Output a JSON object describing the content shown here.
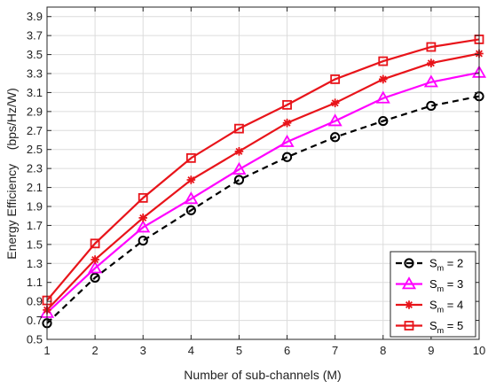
{
  "chart_data": {
    "type": "line",
    "xlabel": "Number of sub-channels (M)",
    "ylabel": "Energy Efficiency    (bps/Hz/W)",
    "xlim": [
      1,
      10
    ],
    "ylim": [
      0.5,
      4.0
    ],
    "x_ticks": [
      1,
      2,
      3,
      4,
      5,
      6,
      7,
      8,
      9,
      10
    ],
    "y_ticks": [
      0.5,
      0.7,
      0.9,
      1.1,
      1.3,
      1.5,
      1.7,
      1.9,
      2.1,
      2.3,
      2.5,
      2.7,
      2.9,
      3.1,
      3.3,
      3.5,
      3.7,
      3.9
    ],
    "y_tick_labels": [
      "0.5",
      "0.7",
      "0.9",
      "1.1",
      "1.3",
      "1.5",
      "1.7",
      "1.9",
      "2.1",
      "2.3",
      "2.5",
      "2.7",
      "2.9",
      "3.1",
      "3.3",
      "3.5",
      "3.7",
      "3.9"
    ],
    "grid": true,
    "legend_position": "bottom-right",
    "x": [
      1,
      2,
      3,
      4,
      5,
      6,
      7,
      8,
      9,
      10
    ],
    "series": [
      {
        "legend_base": "S",
        "legend_sub": "m",
        "legend_value": " = 2",
        "color": "#000000",
        "dash": true,
        "marker": "circle",
        "values": [
          0.67,
          1.15,
          1.54,
          1.86,
          2.18,
          2.42,
          2.63,
          2.8,
          2.96,
          3.06
        ]
      },
      {
        "legend_base": "S",
        "legend_sub": "m",
        "legend_value": " = 3",
        "color": "#ff00ff",
        "dash": false,
        "marker": "triangle",
        "values": [
          0.78,
          1.25,
          1.68,
          1.98,
          2.29,
          2.58,
          2.8,
          3.04,
          3.21,
          3.31
        ]
      },
      {
        "legend_base": "S",
        "legend_sub": "m",
        "legend_value": " = 4",
        "color": "#e8141a",
        "dash": false,
        "marker": "star",
        "values": [
          0.81,
          1.34,
          1.78,
          2.18,
          2.48,
          2.78,
          2.99,
          3.24,
          3.41,
          3.51
        ]
      },
      {
        "legend_base": "S",
        "legend_sub": "m",
        "legend_value": " = 5",
        "color": "#e8141a",
        "dash": false,
        "marker": "square",
        "values": [
          0.91,
          1.51,
          1.99,
          2.41,
          2.72,
          2.97,
          3.24,
          3.43,
          3.58,
          3.66
        ]
      }
    ]
  }
}
